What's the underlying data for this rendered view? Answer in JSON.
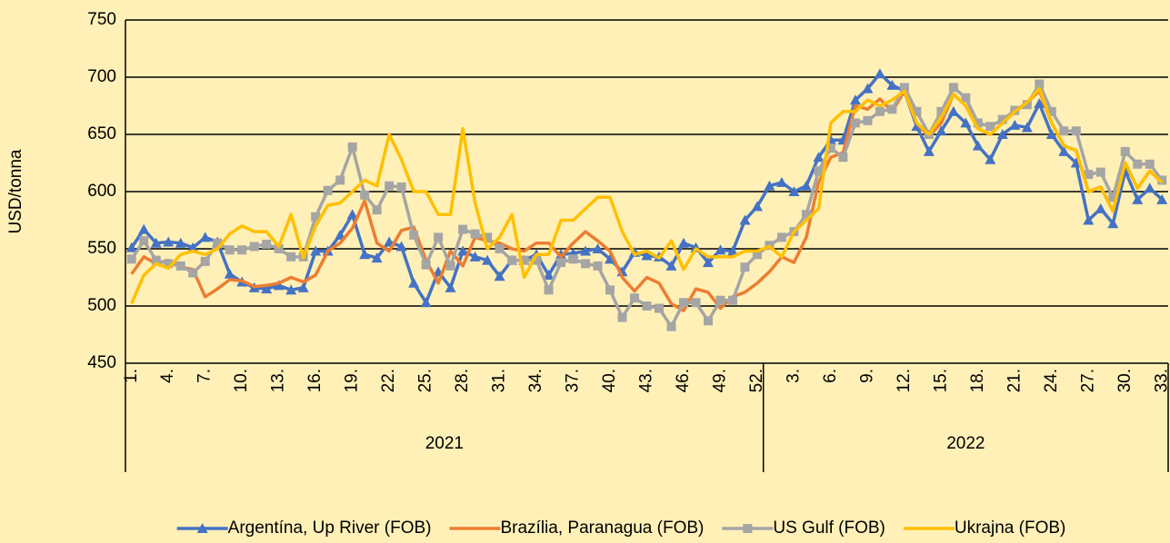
{
  "chart_data": {
    "type": "line",
    "y_label": "USD/tonna",
    "categories": [
      "1.",
      null,
      null,
      "4.",
      null,
      null,
      "7.",
      null,
      null,
      "10.",
      null,
      null,
      "13.",
      null,
      null,
      "16.",
      null,
      null,
      "19.",
      null,
      null,
      "22.",
      null,
      null,
      "25.",
      null,
      null,
      "28.",
      null,
      null,
      "31.",
      null,
      null,
      "34.",
      null,
      null,
      "37.",
      null,
      null,
      "40.",
      null,
      null,
      "43.",
      null,
      null,
      "46.",
      null,
      null,
      "49.",
      null,
      null,
      "52.",
      null,
      null,
      "3.",
      null,
      null,
      "6.",
      null,
      null,
      "9.",
      null,
      null,
      "12.",
      null,
      null,
      "15.",
      null,
      null,
      "18.",
      null,
      null,
      "21.",
      null,
      null,
      "24.",
      null,
      null,
      "27.",
      null,
      null,
      "30.",
      null,
      null,
      "33."
    ],
    "groups": [
      {
        "name": "2021",
        "size": 52
      },
      {
        "name": "2022",
        "size": 33
      }
    ],
    "series": [
      {
        "name": "Argentína, Up River (FOB)",
        "color": "#4472C4",
        "marker": "triangle",
        "values": [
          551,
          567,
          555,
          556,
          555,
          551,
          560,
          556,
          528,
          521,
          516,
          515,
          518,
          514,
          516,
          548,
          548,
          562,
          580,
          545,
          542,
          556,
          552,
          520,
          503,
          530,
          516,
          548,
          543,
          540,
          526,
          540,
          540,
          545,
          527,
          545,
          546,
          548,
          550,
          541,
          530,
          547,
          544,
          543,
          535,
          555,
          551,
          538,
          549,
          548,
          575,
          587,
          605,
          608,
          600,
          605,
          630,
          645,
          645,
          680,
          690,
          703,
          693,
          688,
          657,
          635,
          653,
          670,
          660,
          640,
          628,
          650,
          658,
          656,
          677,
          650,
          635,
          625,
          575,
          585,
          572,
          618,
          593,
          603,
          593
        ]
      },
      {
        "name": "Brazília, Paranagua (FOB)",
        "color": "#ED7D31",
        "marker": "none",
        "values": [
          528,
          543,
          537,
          540,
          534,
          532,
          508,
          515,
          523,
          522,
          517,
          518,
          520,
          525,
          521,
          527,
          548,
          555,
          568,
          592,
          555,
          548,
          566,
          569,
          540,
          520,
          548,
          535,
          560,
          557,
          555,
          550,
          548,
          555,
          555,
          543,
          555,
          565,
          557,
          548,
          525,
          513,
          525,
          520,
          502,
          496,
          515,
          512,
          498,
          508,
          512,
          520,
          530,
          543,
          538,
          560,
          608,
          630,
          634,
          675,
          672,
          681,
          670,
          688,
          660,
          648,
          660,
          685,
          675,
          655,
          650,
          660,
          670,
          678,
          688,
          660,
          640,
          636,
          600,
          604,
          583,
          625,
          603,
          618,
          608
        ]
      },
      {
        "name": "US Gulf (FOB)",
        "color": "#A5A5A5",
        "marker": "square",
        "values": [
          541,
          557,
          540,
          537,
          535,
          529,
          539,
          555,
          549,
          549,
          552,
          554,
          550,
          543,
          543,
          578,
          601,
          610,
          639,
          597,
          584,
          605,
          604,
          562,
          536,
          560,
          535,
          567,
          563,
          560,
          550,
          540,
          540,
          540,
          514,
          538,
          541,
          537,
          535,
          514,
          490,
          507,
          500,
          498,
          482,
          503,
          503,
          487,
          505,
          505,
          534,
          545,
          553,
          560,
          565,
          580,
          618,
          638,
          630,
          660,
          662,
          670,
          672,
          691,
          670,
          650,
          670,
          691,
          682,
          660,
          657,
          663,
          671,
          676,
          694,
          670,
          653,
          653,
          615,
          617,
          595,
          635,
          624,
          624,
          610
        ]
      },
      {
        "name": "Ukrajna (FOB)",
        "color": "#FFC000",
        "marker": "none",
        "values": [
          502,
          527,
          537,
          533,
          545,
          548,
          545,
          550,
          563,
          570,
          565,
          565,
          552,
          580,
          542,
          570,
          588,
          590,
          600,
          610,
          605,
          650,
          628,
          600,
          600,
          580,
          580,
          655,
          590,
          550,
          560,
          580,
          525,
          545,
          545,
          575,
          575,
          585,
          595,
          595,
          565,
          545,
          548,
          542,
          557,
          532,
          550,
          543,
          543,
          543,
          548,
          548,
          552,
          543,
          565,
          575,
          585,
          660,
          670,
          670,
          680,
          675,
          680,
          688,
          660,
          650,
          665,
          685,
          675,
          655,
          650,
          660,
          670,
          678,
          690,
          660,
          640,
          636,
          600,
          604,
          583,
          625,
          603,
          618,
          608
        ]
      }
    ],
    "ylim": [
      450,
      750
    ],
    "yticks": [
      450,
      500,
      550,
      600,
      650,
      700,
      750
    ],
    "grid": true,
    "legend": "bottom"
  }
}
